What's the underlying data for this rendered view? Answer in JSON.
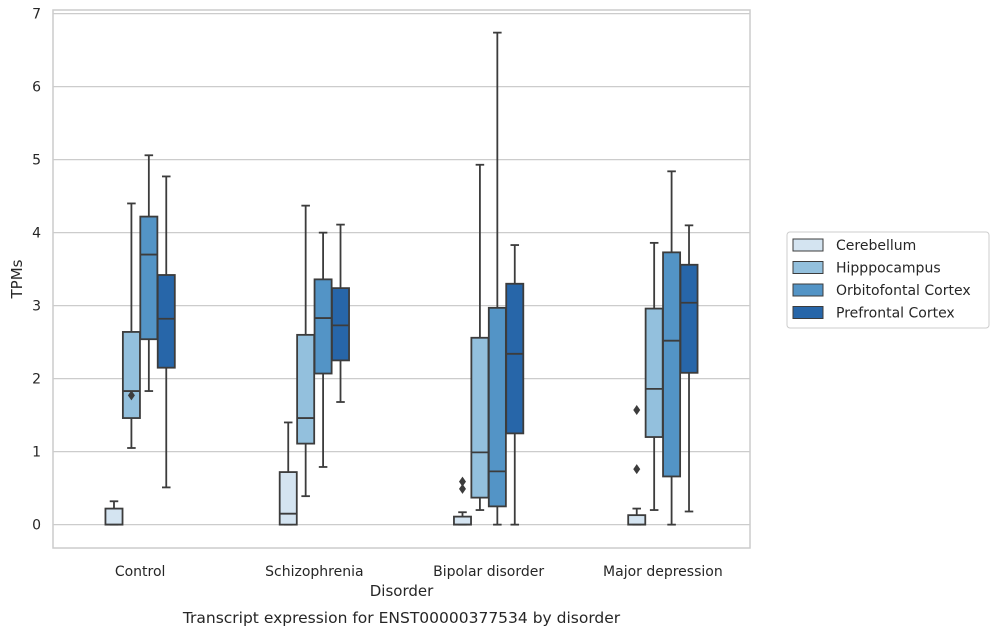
{
  "chart_data": {
    "type": "box",
    "title": "",
    "caption": "Transcript expression for ENST00000377534 by disorder",
    "xlabel": "Disorder",
    "ylabel": "TPMs",
    "ylim": [
      -0.32,
      7.05
    ],
    "yticks": [
      0,
      1,
      2,
      3,
      4,
      5,
      6,
      7
    ],
    "grid": "horizontal",
    "legend_position": "right",
    "categories": [
      "Control",
      "Schizophrenia",
      "Bipolar disorder",
      "Major depression"
    ],
    "series": [
      {
        "name": "Cerebellum",
        "color": "#d4e4f1",
        "boxes": [
          {
            "whislo": 0,
            "q1": 0,
            "med": 0,
            "q3": 0.22,
            "whishi": 0.32,
            "fliers": []
          },
          {
            "whislo": 0,
            "q1": 0,
            "med": 0.15,
            "q3": 0.72,
            "whishi": 1.4,
            "fliers": []
          },
          {
            "whislo": 0,
            "q1": 0,
            "med": 0,
            "q3": 0.11,
            "whishi": 0.17,
            "fliers": [
              0.49,
              0.59
            ]
          },
          {
            "whislo": 0,
            "q1": 0,
            "med": 0,
            "q3": 0.13,
            "whishi": 0.22,
            "fliers": [
              0.76,
              1.57
            ]
          }
        ]
      },
      {
        "name": "Hipppocampus",
        "color": "#93c0dd",
        "boxes": [
          {
            "whislo": 1.05,
            "q1": 1.46,
            "med": 1.83,
            "q3": 2.64,
            "whishi": 4.4,
            "fliers": [
              1.77
            ]
          },
          {
            "whislo": 0.39,
            "q1": 1.11,
            "med": 1.46,
            "q3": 2.6,
            "whishi": 4.37,
            "fliers": []
          },
          {
            "whislo": 0.2,
            "q1": 0.37,
            "med": 0.99,
            "q3": 2.56,
            "whishi": 4.93,
            "fliers": []
          },
          {
            "whislo": 0.2,
            "q1": 1.2,
            "med": 1.86,
            "q3": 2.96,
            "whishi": 3.86,
            "fliers": []
          }
        ]
      },
      {
        "name": "Orbitofontal Cortex",
        "color": "#5394c6",
        "boxes": [
          {
            "whislo": 1.83,
            "q1": 2.54,
            "med": 3.7,
            "q3": 4.22,
            "whishi": 5.06,
            "fliers": []
          },
          {
            "whislo": 0.79,
            "q1": 2.07,
            "med": 2.83,
            "q3": 3.36,
            "whishi": 4.0,
            "fliers": []
          },
          {
            "whislo": 0,
            "q1": 0.25,
            "med": 0.73,
            "q3": 2.97,
            "whishi": 6.74,
            "fliers": []
          },
          {
            "whislo": 0,
            "q1": 0.66,
            "med": 2.52,
            "q3": 3.73,
            "whishi": 4.84,
            "fliers": []
          }
        ]
      },
      {
        "name": "Prefrontal Cortex",
        "color": "#2766a9",
        "boxes": [
          {
            "whislo": 0.51,
            "q1": 2.15,
            "med": 2.82,
            "q3": 3.42,
            "whishi": 4.77,
            "fliers": []
          },
          {
            "whislo": 1.68,
            "q1": 2.25,
            "med": 2.73,
            "q3": 3.24,
            "whishi": 4.11,
            "fliers": []
          },
          {
            "whislo": 0,
            "q1": 1.25,
            "med": 2.34,
            "q3": 3.3,
            "whishi": 3.83,
            "fliers": []
          },
          {
            "whislo": 0.18,
            "q1": 2.08,
            "med": 3.04,
            "q3": 3.56,
            "whishi": 4.1,
            "fliers": []
          }
        ]
      }
    ]
  }
}
